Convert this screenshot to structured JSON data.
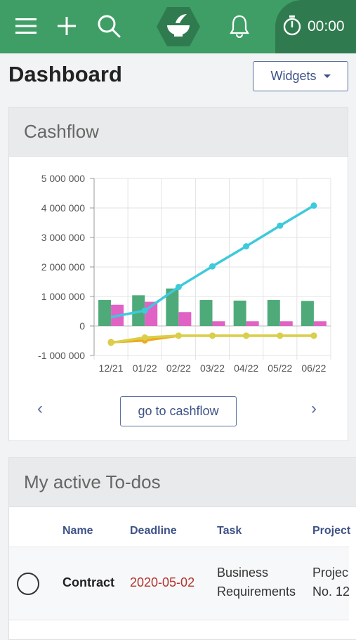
{
  "timer": {
    "text": "00:00"
  },
  "page": {
    "title": "Dashboard",
    "widgets_label": "Widgets"
  },
  "cashflow": {
    "title": "Cashflow",
    "goto_label": "go to cashflow",
    "prev": "‹",
    "next": "›"
  },
  "chart_data": {
    "type": "bar",
    "categories": [
      "12/21",
      "01/22",
      "02/22",
      "03/22",
      "04/22",
      "05/22",
      "06/22"
    ],
    "ylim": [
      -1000000,
      5000000
    ],
    "yticks": [
      "5 000 000",
      "4 000 000",
      "3 000 000",
      "2 000 000",
      "1 000 000",
      "0",
      "-1 000 000"
    ],
    "ytick_values": [
      5000000,
      4000000,
      3000000,
      2000000,
      1000000,
      0,
      -1000000
    ],
    "grid": true,
    "series": [
      {
        "type": "bar",
        "color": "#4faa7a",
        "values": [
          880000,
          1040000,
          1270000,
          880000,
          860000,
          880000,
          850000
        ]
      },
      {
        "type": "bar",
        "color": "#e062c4",
        "values": [
          720000,
          820000,
          470000,
          160000,
          160000,
          160000,
          160000
        ]
      },
      {
        "type": "line",
        "color": "#3ec9dc",
        "values": [
          300000,
          520000,
          1320000,
          2020000,
          2700000,
          3400000,
          4080000
        ]
      },
      {
        "type": "line",
        "color": "#f2a81d",
        "values": [
          -550000,
          -490000,
          -330000,
          -330000,
          -330000,
          -330000,
          -330000
        ]
      },
      {
        "type": "line",
        "color": "#d8cf4a",
        "values": [
          -570000,
          -390000,
          -330000,
          -330000,
          -330000,
          -330000,
          -330000
        ]
      }
    ]
  },
  "todos": {
    "title": "My active To-dos",
    "columns": {
      "name": "Name",
      "deadline": "Deadline",
      "task": "Task",
      "project": "Project"
    },
    "rows": [
      {
        "name": "Contract",
        "deadline": "2020-05-02",
        "task_line1": "Business",
        "task_line2": "Requirements",
        "project_line1": "Projec",
        "project_line2": "No. 12"
      }
    ]
  }
}
